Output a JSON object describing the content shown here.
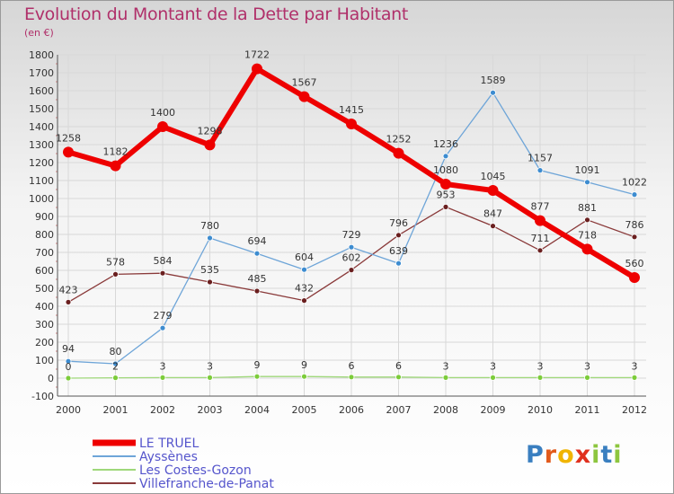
{
  "header": {
    "title": "Evolution du Montant de la Dette par Habitant",
    "subtitle": "(en €)"
  },
  "logo": {
    "text": "Proxiti",
    "colors": [
      "#3a7fc0",
      "#e25a1c",
      "#f0b400",
      "#e0301e",
      "#8dc63f",
      "#3a7fc0",
      "#8dc63f"
    ]
  },
  "chart_data": {
    "type": "line",
    "title": "Evolution du Montant de la Dette par Habitant",
    "subtitle": "(en €)",
    "x": [
      "2000",
      "2001",
      "2002",
      "2003",
      "2004",
      "2005",
      "2006",
      "2007",
      "2008",
      "2009",
      "2010",
      "2011",
      "2012"
    ],
    "ylim": [
      -100,
      1800
    ],
    "yticks": [
      "-100",
      "0",
      "100",
      "200",
      "300",
      "400",
      "500",
      "600",
      "700",
      "800",
      "900",
      "1000",
      "1100",
      "1200",
      "1300",
      "1400",
      "1500",
      "1600",
      "1700",
      "1800"
    ],
    "grid": true,
    "legend_position": "bottom-left",
    "series": [
      {
        "name": "LE TRUEL",
        "color": "#ee0000",
        "values": [
          1258,
          1182,
          1400,
          1298,
          1722,
          1567,
          1415,
          1252,
          1080,
          1045,
          877,
          718,
          560
        ]
      },
      {
        "name": "Ayssènes",
        "color": "#5b9bd5",
        "values": [
          94,
          80,
          279,
          780,
          694,
          604,
          729,
          639,
          1236,
          1589,
          1157,
          1091,
          1022
        ]
      },
      {
        "name": "Les Costes-Gozon",
        "color": "#90d060",
        "values": [
          0,
          2,
          3,
          3,
          9,
          9,
          6,
          6,
          3,
          3,
          3,
          3,
          3
        ]
      },
      {
        "name": "Villefranche-de-Panat",
        "color": "#7a2a2a",
        "values": [
          423,
          578,
          584,
          535,
          485,
          432,
          602,
          796,
          953,
          847,
          711,
          881,
          786
        ]
      }
    ]
  }
}
